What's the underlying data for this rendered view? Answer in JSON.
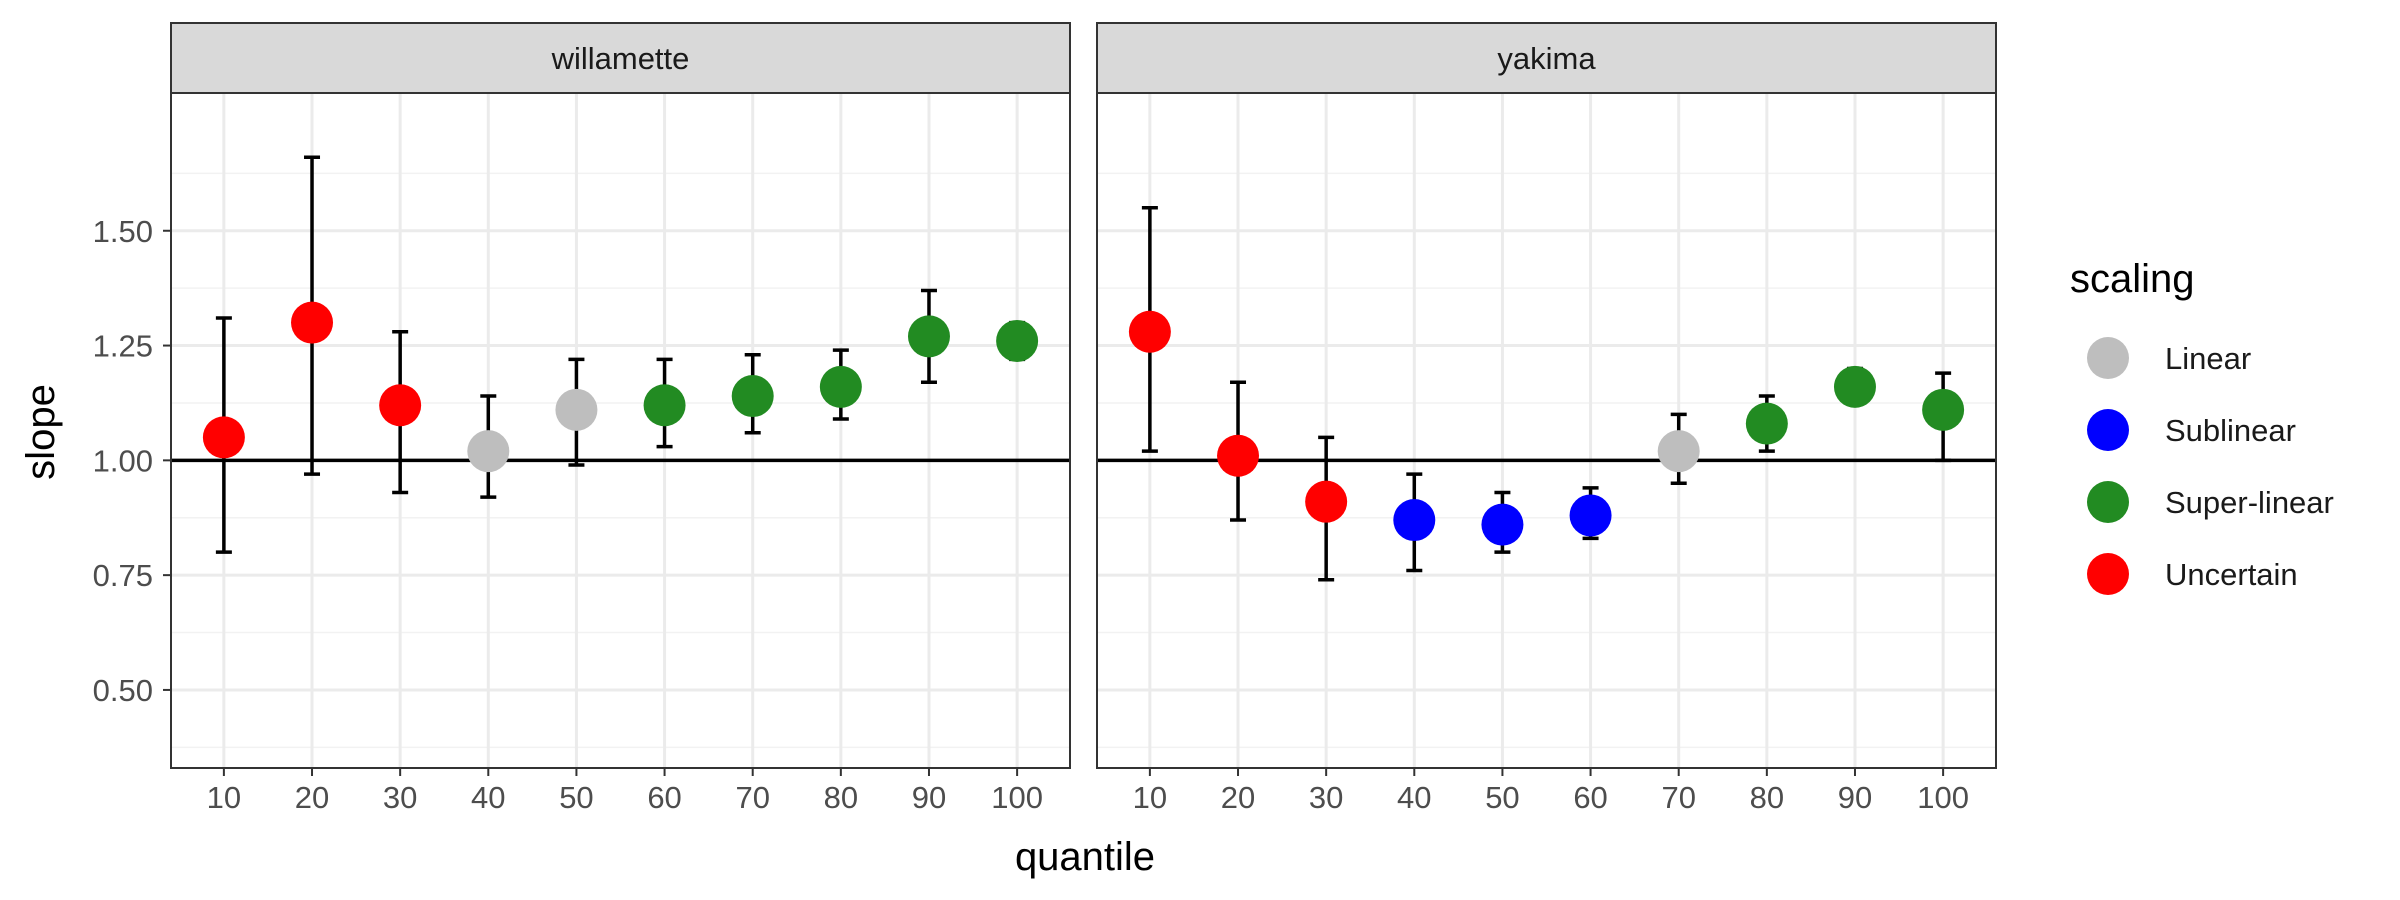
{
  "chart_data": {
    "type": "scatter",
    "xlabel": "quantile",
    "ylabel": "slope",
    "x_ticks": [
      10,
      20,
      30,
      40,
      50,
      60,
      70,
      80,
      90,
      100
    ],
    "y_ticks": [
      0.5,
      0.75,
      1.0,
      1.25,
      1.5
    ],
    "y_tick_labels": [
      "0.50",
      "0.75",
      "1.00",
      "1.25",
      "1.50"
    ],
    "ylim": [
      0.33,
      1.8
    ],
    "xlim": [
      4,
      106
    ],
    "reference_line_y": 1.0,
    "grid": true,
    "legend_position": "right",
    "legend": {
      "title": "scaling",
      "entries": [
        {
          "label": "Linear",
          "color": "#bebebe"
        },
        {
          "label": "Sublinear",
          "color": "#0000ff"
        },
        {
          "label": "Super-linear",
          "color": "#228b22"
        },
        {
          "label": "Uncertain",
          "color": "#ff0000"
        }
      ]
    },
    "panels": [
      {
        "title": "willamette",
        "points": [
          {
            "x": 10,
            "y": 1.05,
            "lo": 0.8,
            "hi": 1.31,
            "scaling": "Uncertain"
          },
          {
            "x": 20,
            "y": 1.3,
            "lo": 0.97,
            "hi": 1.66,
            "scaling": "Uncertain"
          },
          {
            "x": 30,
            "y": 1.12,
            "lo": 0.93,
            "hi": 1.28,
            "scaling": "Uncertain"
          },
          {
            "x": 40,
            "y": 1.02,
            "lo": 0.92,
            "hi": 1.14,
            "scaling": "Linear"
          },
          {
            "x": 50,
            "y": 1.11,
            "lo": 0.99,
            "hi": 1.22,
            "scaling": "Linear"
          },
          {
            "x": 60,
            "y": 1.12,
            "lo": 1.03,
            "hi": 1.22,
            "scaling": "Super-linear"
          },
          {
            "x": 70,
            "y": 1.14,
            "lo": 1.06,
            "hi": 1.23,
            "scaling": "Super-linear"
          },
          {
            "x": 80,
            "y": 1.16,
            "lo": 1.09,
            "hi": 1.24,
            "scaling": "Super-linear"
          },
          {
            "x": 90,
            "y": 1.27,
            "lo": 1.17,
            "hi": 1.37,
            "scaling": "Super-linear"
          },
          {
            "x": 100,
            "y": 1.26,
            "lo": 1.22,
            "hi": 1.3,
            "scaling": "Super-linear"
          }
        ]
      },
      {
        "title": "yakima",
        "points": [
          {
            "x": 10,
            "y": 1.28,
            "lo": 1.02,
            "hi": 1.55,
            "scaling": "Uncertain"
          },
          {
            "x": 20,
            "y": 1.01,
            "lo": 0.87,
            "hi": 1.17,
            "scaling": "Uncertain"
          },
          {
            "x": 30,
            "y": 0.91,
            "lo": 0.74,
            "hi": 1.05,
            "scaling": "Uncertain"
          },
          {
            "x": 40,
            "y": 0.87,
            "lo": 0.76,
            "hi": 0.97,
            "scaling": "Sublinear"
          },
          {
            "x": 50,
            "y": 0.86,
            "lo": 0.8,
            "hi": 0.93,
            "scaling": "Sublinear"
          },
          {
            "x": 60,
            "y": 0.88,
            "lo": 0.83,
            "hi": 0.94,
            "scaling": "Sublinear"
          },
          {
            "x": 70,
            "y": 1.02,
            "lo": 0.95,
            "hi": 1.1,
            "scaling": "Linear"
          },
          {
            "x": 80,
            "y": 1.08,
            "lo": 1.02,
            "hi": 1.14,
            "scaling": "Super-linear"
          },
          {
            "x": 90,
            "y": 1.16,
            "lo": 1.13,
            "hi": 1.2,
            "scaling": "Super-linear"
          },
          {
            "x": 100,
            "y": 1.11,
            "lo": 1.0,
            "hi": 1.19,
            "scaling": "Super-linear"
          }
        ]
      }
    ]
  }
}
